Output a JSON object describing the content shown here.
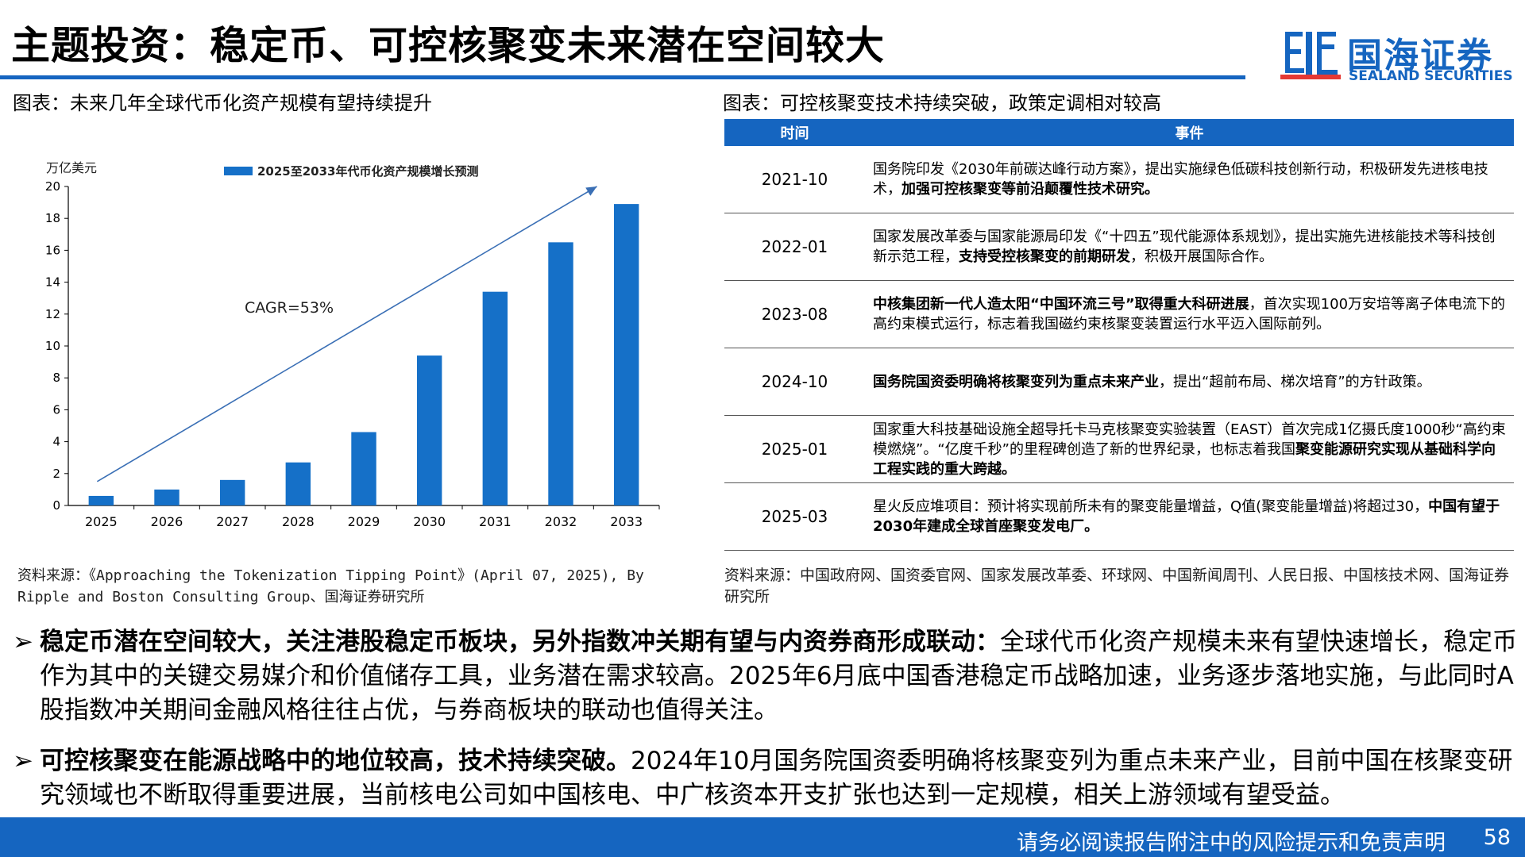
{
  "header": {
    "title": "主题投资：稳定币、可控核聚变未来潜在空间较大",
    "logo_cn": "国海证券",
    "logo_en": "SEALAND SECURITIES",
    "accent_color": "#1565c0"
  },
  "left_panel": {
    "caption": "图表：未来几年全球代币化资产规模有望持续提升",
    "source": "资料来源：《Approaching the Tokenization Tipping Point》(April 07, 2025), By Ripple and Boston Consulting Group、国海证券研究所"
  },
  "chart_data": {
    "type": "bar",
    "unit_label": "万亿美元",
    "legend": "2025至2033年代币化资产规模增长预测",
    "legend_position": "top-left",
    "annotation": "CAGR=53%",
    "categories": [
      "2025",
      "2026",
      "2027",
      "2028",
      "2029",
      "2030",
      "2031",
      "2032",
      "2033"
    ],
    "values": [
      0.6,
      1.0,
      1.6,
      2.7,
      4.6,
      9.4,
      13.4,
      16.5,
      18.9
    ],
    "ylim": [
      0,
      20
    ],
    "yticks": [
      "0",
      "2",
      "4",
      "6",
      "8",
      "10",
      "12",
      "14",
      "16",
      "18",
      "20"
    ],
    "bar_color": "#1570c8",
    "grid": false
  },
  "right_panel": {
    "caption": "图表：可控核聚变技术持续突破，政策定调相对较高",
    "table": {
      "headers": [
        "时间",
        "事件"
      ],
      "rows": [
        {
          "time": "2021-10",
          "segments": [
            {
              "text": "国务院印发《2030年前碳达峰行动方案》，提出实施绿色低碳科技创新行动，积极研发先进核电技术，",
              "bold": false
            },
            {
              "text": "加强可控核聚变等前沿颠覆性技术研究。",
              "bold": true
            }
          ]
        },
        {
          "time": "2022-01",
          "segments": [
            {
              "text": "国家发展改革委与国家能源局印发《“十四五”现代能源体系规划》，提出实施先进核能技术等科技创新示范工程，",
              "bold": false
            },
            {
              "text": "支持受控核聚变的前期研发",
              "bold": true
            },
            {
              "text": "，积极开展国际合作。",
              "bold": false
            }
          ]
        },
        {
          "time": "2023-08",
          "segments": [
            {
              "text": "中核集团新一代人造太阳“中国环流三号”取得重大科研进展",
              "bold": true
            },
            {
              "text": "，首次实现100万安培等离子体电流下的高约束模式运行，标志着我国磁约束核聚变装置运行水平迈入国际前列。",
              "bold": false
            }
          ]
        },
        {
          "time": "2024-10",
          "segments": [
            {
              "text": "国务院国资委明确将核聚变列为重点未来产业",
              "bold": true
            },
            {
              "text": "，提出“超前布局、梯次培育”的方针政策。",
              "bold": false
            }
          ]
        },
        {
          "time": "2025-01",
          "segments": [
            {
              "text": "国家重大科技基础设施全超导托卡马克核聚变实验装置（EAST）首次完成1亿摄氏度1000秒“高约束模燃烧”。“亿度千秒”的里程碑创造了新的世界纪录，也标志着我国",
              "bold": false
            },
            {
              "text": "聚变能源研究实现从基础科学向工程实践的重大跨越。",
              "bold": true
            }
          ]
        },
        {
          "time": "2025-03",
          "segments": [
            {
              "text": "星火反应堆项目：预计将实现前所未有的聚变能量增益，Q值(聚变能量增益)将超过30，",
              "bold": false
            },
            {
              "text": "中国有望于2030年建成全球首座聚变发电厂。",
              "bold": true
            }
          ]
        }
      ]
    },
    "source": "资料来源：中国政府网、国资委官网、国家发展改革委、环球网、中国新闻周刊、人民日报、中国核技术网、国海证券研究所"
  },
  "bullets": [
    {
      "marker": "➢",
      "bold": "稳定币潜在空间较大，关注港股稳定币板块，另外指数冲关期有望与内资券商形成联动：",
      "text": "全球代币化资产规模未来有望快速增长，稳定币作为其中的关键交易媒介和价值储存工具，业务潜在需求较高。2025年6月底中国香港稳定币战略加速，业务逐步落地实施，与此同时A股指数冲关期间金融风格往往占优，与券商板块的联动也值得关注。"
    },
    {
      "marker": "➢",
      "bold": "可控核聚变在能源战略中的地位较高，技术持续突破。",
      "text": "2024年10月国务院国资委明确将核聚变列为重点未来产业，目前中国在核聚变研究领域也不断取得重要进展，当前核电公司如中国核电、中广核资本开支扩张也达到一定规模，相关上游领域有望受益。"
    }
  ],
  "footer": {
    "disclaimer": "请务必阅读报告附注中的风险提示和免责声明",
    "page": "58"
  }
}
